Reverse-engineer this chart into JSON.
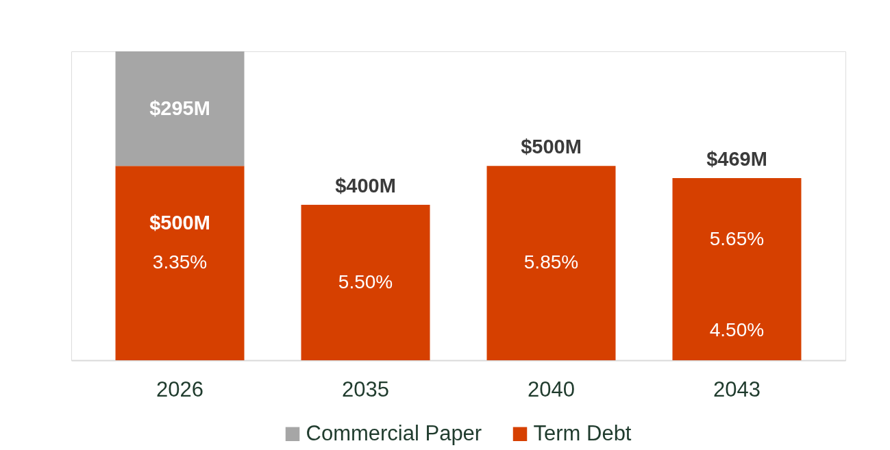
{
  "chart_data": {
    "type": "bar",
    "stacked": true,
    "categories": [
      "2026",
      "2035",
      "2040",
      "2043"
    ],
    "series": [
      {
        "name": "Term Debt",
        "color": "#d64000",
        "values": [
          500,
          400,
          500,
          150
        ],
        "value_labels": [
          "$500M",
          "$400M",
          "$500M",
          null
        ]
      },
      {
        "color": "#d64000",
        "values": [
          null,
          null,
          null,
          319
        ]
      },
      {
        "name": "Commercial Paper",
        "color": "#a6a6a6",
        "values": [
          295,
          null,
          null,
          null
        ],
        "value_labels": [
          "$295M",
          null,
          null,
          null
        ]
      }
    ],
    "totals": [
      null,
      null,
      null,
      "$469M"
    ],
    "annotations": [
      "3.35%",
      "5.50%",
      "5.85%",
      "5.65%",
      "4.50%"
    ],
    "legend": "bottom"
  }
}
